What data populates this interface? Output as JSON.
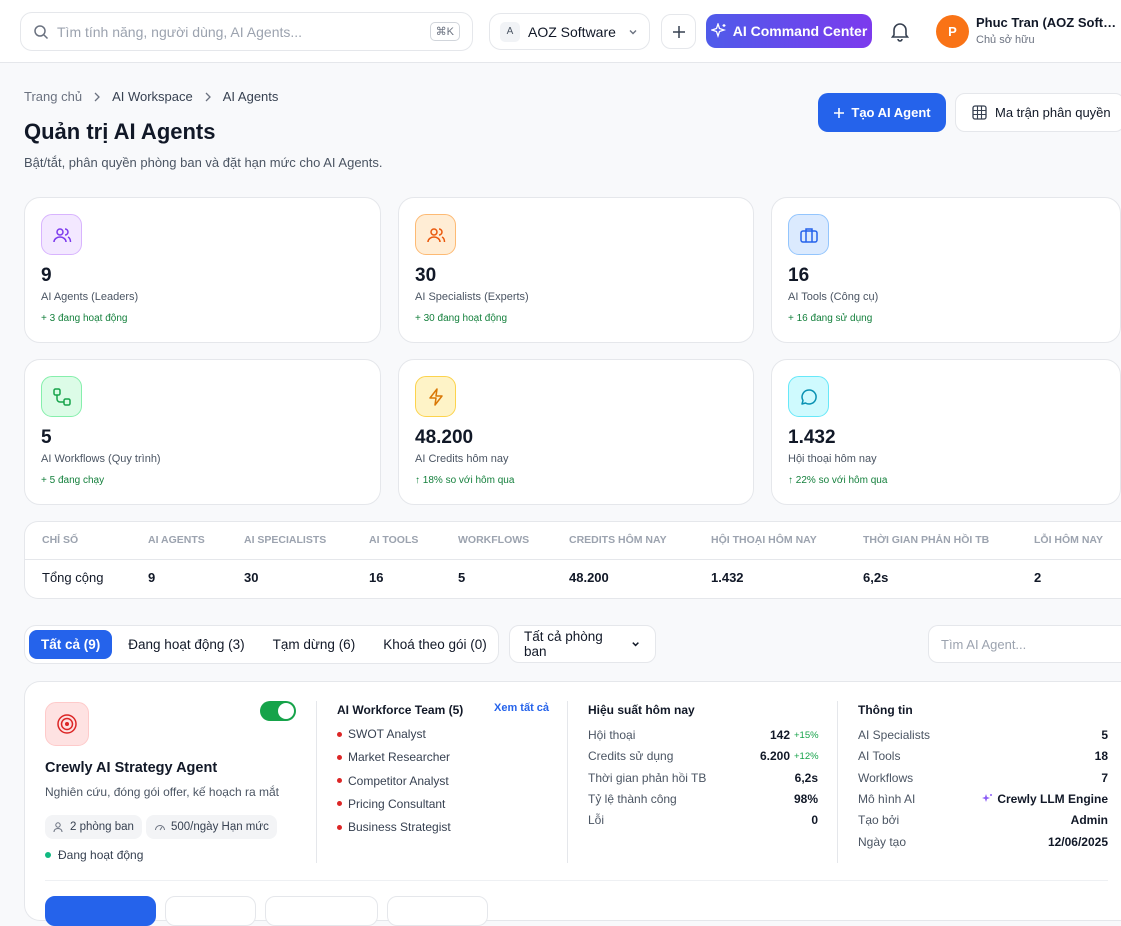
{
  "topbar": {
    "search_placeholder": "Tìm tính năng, người dùng, AI Agents...",
    "shortcut": "⌘K",
    "workspace_initial": "A",
    "workspace": "AOZ Software",
    "command_center": "AI Command Center",
    "user_initial": "P",
    "user_name": "Phuc Tran (AOZ Soft…",
    "user_role": "Chủ sở hữu"
  },
  "breadcrumb": [
    "Trang chủ",
    "AI Workspace",
    "AI Agents"
  ],
  "header": {
    "title": "Quản trị AI Agents",
    "subtitle": "Bật/tắt, phân quyền phòng ban và đặt hạn mức cho AI Agents.",
    "actions": [
      "Tạo AI Agent",
      "Ma trận phân quyền"
    ]
  },
  "stats": [
    {
      "value": "9",
      "label": "AI Agents (Leaders)",
      "note": "+ 3 đang hoạt động"
    },
    {
      "value": "30",
      "label": "AI Specialists (Experts)",
      "note": "+ 30 đang hoạt động"
    },
    {
      "value": "16",
      "label": "AI Tools (Công cụ)",
      "note": "+ 16 đang sử dụng"
    },
    {
      "value": "5",
      "label": "AI Workflows (Quy trình)",
      "note": "+ 5 đang chạy"
    },
    {
      "value": "48.200",
      "label": "AI Credits hôm nay",
      "note": "↑ 18% so với hôm qua"
    },
    {
      "value": "1.432",
      "label": "Hội thoại hôm nay",
      "note": "↑ 22% so với hôm qua"
    }
  ],
  "summary_table": {
    "columns": [
      "CHỈ SỐ",
      "AI AGENTS",
      "AI SPECIALISTS",
      "AI TOOLS",
      "WORKFLOWS",
      "CREDITS HÔM NAY",
      "HỘI THOẠI HÔM NAY",
      "THỜI GIAN PHẢN HỒI TB",
      "LỖI HÔM NAY"
    ],
    "rows": [
      [
        "Tổng cộng",
        "9",
        "30",
        "16",
        "5",
        "48.200",
        "1.432",
        "6,2s",
        "2"
      ]
    ]
  },
  "filters": {
    "tabs": [
      "Tất cả (9)",
      "Đang hoạt động (3)",
      "Tạm dừng (6)",
      "Khoá theo gói (0)"
    ],
    "department": "Tất cả phòng ban",
    "search_placeholder": "Tìm AI Agent..."
  },
  "agent_card": {
    "name": "Crewly AI Strategy Agent",
    "description": "Nghiên cứu, đóng gói offer, kế hoạch ra mắt",
    "chips": [
      "2 phòng ban",
      "500/ngày Hạn mức"
    ],
    "status": "Đang hoạt động",
    "team": {
      "title": "AI Workforce Team (5)",
      "link": "Xem tất cả",
      "members": [
        "SWOT Analyst",
        "Market Researcher",
        "Competitor Analyst",
        "Pricing Consultant",
        "Business Strategist"
      ]
    },
    "performance": {
      "title": "Hiệu suất hôm nay",
      "rows": [
        {
          "label": "Hội thoại",
          "value": "142",
          "delta": "+15%"
        },
        {
          "label": "Credits sử dụng",
          "value": "6.200",
          "delta": "+12%"
        },
        {
          "label": "Thời gian phản hồi TB",
          "value": "6,2s"
        },
        {
          "label": "Tỷ lệ thành công",
          "value": "98%"
        },
        {
          "label": "Lỗi",
          "value": "0"
        }
      ]
    },
    "info": {
      "title": "Thông tin",
      "rows": [
        {
          "label": "AI Specialists",
          "value": "5"
        },
        {
          "label": "AI Tools",
          "value": "18"
        },
        {
          "label": "Workflows",
          "value": "7"
        },
        {
          "label": "Mô hình AI",
          "value": "Crewly LLM Engine"
        },
        {
          "label": "Tạo bởi",
          "value": "Admin"
        },
        {
          "label": "Ngày tạo",
          "value": "12/06/2025"
        }
      ]
    }
  }
}
